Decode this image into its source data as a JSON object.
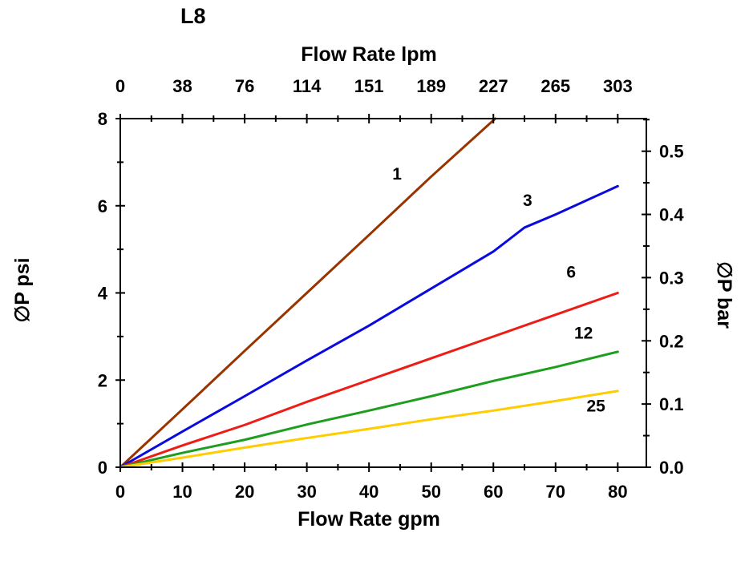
{
  "page": {
    "background": "#ffffff"
  },
  "chart_data": {
    "type": "line",
    "title": "L8",
    "legend": "none",
    "grid": false,
    "top_axis": {
      "label": "Flow Rate lpm",
      "ticks": [
        0,
        38,
        76,
        114,
        151,
        189,
        227,
        265,
        303
      ],
      "gpm_per_tick": 10
    },
    "bottom_axis": {
      "label": "Flow Rate gpm",
      "ticks": [
        0,
        10,
        20,
        30,
        40,
        50,
        60,
        70,
        80
      ],
      "range": [
        0,
        84.6
      ]
    },
    "left_axis": {
      "label": "∅P psi",
      "ticks": [
        0,
        2,
        4,
        6,
        8
      ],
      "range": [
        0,
        8
      ]
    },
    "right_axis": {
      "label": "∅P bar",
      "ticks": [
        0.0,
        0.1,
        0.2,
        0.3,
        0.4,
        0.5
      ],
      "psi_per_bar": 14.5038
    },
    "series": [
      {
        "name": "1",
        "color": "#993300",
        "points": [
          [
            0,
            0
          ],
          [
            10,
            1.33
          ],
          [
            20,
            2.67
          ],
          [
            30,
            4.0
          ],
          [
            40,
            5.33
          ],
          [
            50,
            6.67
          ],
          [
            60.3,
            8.0
          ]
        ],
        "label_at": [
          44.5,
          6.6
        ]
      },
      {
        "name": "3",
        "color": "#0a0adf",
        "points": [
          [
            0,
            0
          ],
          [
            10,
            0.82
          ],
          [
            20,
            1.63
          ],
          [
            30,
            2.45
          ],
          [
            40,
            3.25
          ],
          [
            50,
            4.1
          ],
          [
            60,
            4.95
          ],
          [
            65,
            5.5
          ],
          [
            70,
            5.8
          ],
          [
            80,
            6.45
          ]
        ],
        "label_at": [
          65.5,
          6.0
        ]
      },
      {
        "name": "6",
        "color": "#ed1c16",
        "points": [
          [
            0,
            0
          ],
          [
            10,
            0.5
          ],
          [
            20,
            0.97
          ],
          [
            30,
            1.5
          ],
          [
            40,
            2.0
          ],
          [
            50,
            2.5
          ],
          [
            60,
            3.0
          ],
          [
            70,
            3.5
          ],
          [
            80,
            4.0
          ]
        ],
        "label_at": [
          72.5,
          4.35
        ]
      },
      {
        "name": "12",
        "color": "#1e9e1e",
        "points": [
          [
            0,
            0
          ],
          [
            10,
            0.33
          ],
          [
            20,
            0.63
          ],
          [
            30,
            0.98
          ],
          [
            40,
            1.3
          ],
          [
            50,
            1.63
          ],
          [
            60,
            1.98
          ],
          [
            70,
            2.3
          ],
          [
            80,
            2.65
          ]
        ],
        "label_at": [
          74.5,
          2.95
        ]
      },
      {
        "name": "25",
        "color": "#ffcc00",
        "points": [
          [
            0,
            0
          ],
          [
            10,
            0.22
          ],
          [
            20,
            0.45
          ],
          [
            30,
            0.67
          ],
          [
            40,
            0.88
          ],
          [
            50,
            1.1
          ],
          [
            60,
            1.3
          ],
          [
            70,
            1.52
          ],
          [
            80,
            1.75
          ]
        ],
        "label_at": [
          76.5,
          1.28
        ]
      }
    ]
  }
}
